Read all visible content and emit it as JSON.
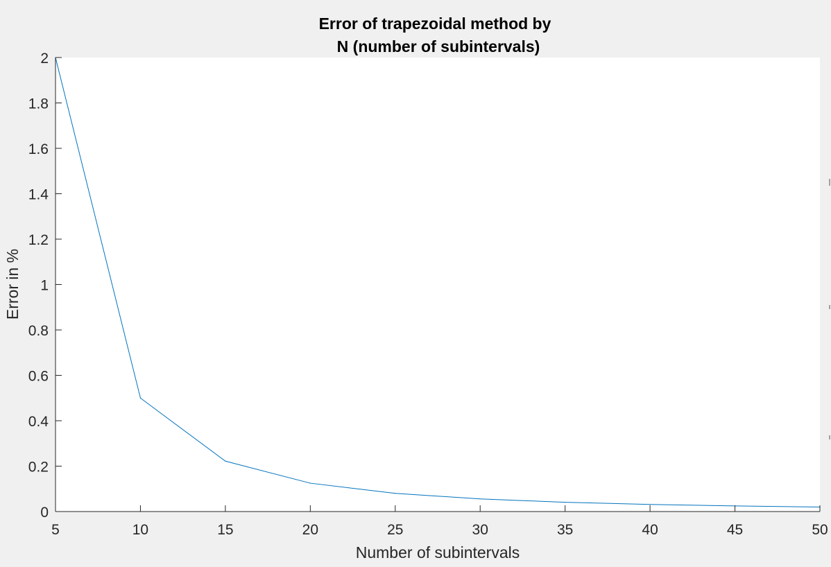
{
  "chart_data": {
    "type": "line",
    "title": [
      "Error of trapezoidal method by",
      "N (number of subintervals)"
    ],
    "xlabel": "Number of subintervals",
    "ylabel": "Error in %",
    "xlim": [
      5,
      50
    ],
    "ylim": [
      0,
      2
    ],
    "xticks": [
      "5",
      "10",
      "15",
      "20",
      "25",
      "30",
      "35",
      "40",
      "45",
      "50"
    ],
    "yticks": [
      "0",
      "0.2",
      "0.4",
      "0.6",
      "0.8",
      "1",
      "1.2",
      "1.4",
      "1.6",
      "1.8",
      "2"
    ],
    "grid": false,
    "series": [
      {
        "x": [
          5,
          10,
          15,
          20,
          25,
          30,
          35,
          40,
          45,
          50
        ],
        "y": [
          2.0,
          0.5,
          0.222,
          0.125,
          0.08,
          0.0556,
          0.0408,
          0.0313,
          0.0247,
          0.02
        ],
        "color": "#0072BD"
      }
    ]
  }
}
